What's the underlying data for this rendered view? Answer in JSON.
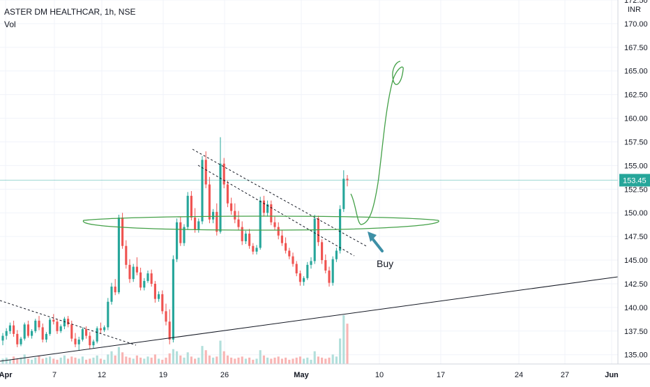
{
  "chart_data": {
    "type": "candlestick",
    "symbol_line": "ASTER DM HEALTHCAR, 1h, NSE",
    "volume_label": "Vol",
    "currency": "INR",
    "ylim": [
      134.5,
      172.5
    ],
    "y_ticks": [
      {
        "label": "135.00",
        "value": 135
      },
      {
        "label": "137.50",
        "value": 137.5
      },
      {
        "label": "140.00",
        "value": 140
      },
      {
        "label": "142.50",
        "value": 142.5
      },
      {
        "label": "145.00",
        "value": 145
      },
      {
        "label": "147.50",
        "value": 147.5
      },
      {
        "label": "150.00",
        "value": 150
      },
      {
        "label": "152.50",
        "value": 152.5
      },
      {
        "label": "155.00",
        "value": 155
      },
      {
        "label": "157.50",
        "value": 157.5
      },
      {
        "label": "160.00",
        "value": 160
      },
      {
        "label": "162.50",
        "value": 162.5
      },
      {
        "label": "165.00",
        "value": 165
      },
      {
        "label": "167.50",
        "value": 167.5
      },
      {
        "label": "170.00",
        "value": 170
      },
      {
        "label": "172.50",
        "value": 172.5
      }
    ],
    "x_ticks": [
      {
        "label": "Apr",
        "bold": true
      },
      {
        "label": "7",
        "bold": false
      },
      {
        "label": "12",
        "bold": false
      },
      {
        "label": "19",
        "bold": false
      },
      {
        "label": "26",
        "bold": false
      },
      {
        "label": "May",
        "bold": true
      },
      {
        "label": "10",
        "bold": false
      },
      {
        "label": "17",
        "bold": false
      },
      {
        "label": "24",
        "bold": false
      },
      {
        "label": "27",
        "bold": false
      },
      {
        "label": "Jun",
        "bold": true
      }
    ],
    "last_price": {
      "value": 153.45,
      "label": "153.45"
    },
    "candles": [
      [
        136.5,
        137.3,
        136.0,
        137.0
      ],
      [
        137.0,
        137.8,
        136.6,
        137.5
      ],
      [
        137.5,
        138.4,
        137.2,
        138.1
      ],
      [
        138.1,
        138.6,
        136.9,
        137.2
      ],
      [
        137.2,
        137.6,
        135.8,
        136.1
      ],
      [
        136.1,
        136.9,
        135.9,
        136.7
      ],
      [
        136.7,
        138.4,
        136.5,
        138.2
      ],
      [
        138.2,
        138.6,
        136.8,
        137.0
      ],
      [
        137.0,
        137.7,
        136.7,
        137.5
      ],
      [
        137.5,
        138.8,
        137.3,
        138.6
      ],
      [
        138.6,
        139.1,
        137.6,
        137.9
      ],
      [
        137.9,
        138.3,
        136.3,
        136.6
      ],
      [
        136.6,
        137.4,
        136.3,
        137.2
      ],
      [
        137.2,
        138.9,
        137.0,
        138.7
      ],
      [
        138.7,
        139.3,
        138.2,
        138.5
      ],
      [
        138.5,
        138.8,
        137.2,
        137.5
      ],
      [
        137.5,
        138.2,
        137.3,
        138.0
      ],
      [
        138.0,
        139.0,
        137.7,
        138.8
      ],
      [
        138.8,
        139.1,
        137.9,
        138.2
      ],
      [
        138.2,
        138.6,
        136.4,
        136.7
      ],
      [
        136.7,
        137.3,
        135.8,
        136.1
      ],
      [
        136.1,
        136.9,
        135.5,
        136.6
      ],
      [
        136.6,
        137.9,
        136.4,
        137.7
      ],
      [
        137.7,
        138.0,
        136.7,
        137.0
      ],
      [
        137.0,
        137.4,
        135.6,
        136.0
      ],
      [
        136.0,
        136.6,
        135.7,
        136.4
      ],
      [
        136.4,
        138.0,
        136.2,
        137.8
      ],
      [
        137.8,
        138.4,
        137.2,
        137.6
      ],
      [
        137.6,
        138.1,
        137.4,
        137.9
      ],
      [
        137.9,
        141.0,
        137.6,
        140.6
      ],
      [
        140.6,
        142.6,
        140.3,
        142.2
      ],
      [
        142.2,
        143.0,
        141.3,
        141.6
      ],
      [
        141.6,
        149.8,
        141.4,
        149.5
      ],
      [
        149.5,
        150.0,
        146.2,
        146.5
      ],
      [
        146.5,
        147.1,
        144.1,
        144.5
      ],
      [
        144.5,
        145.1,
        142.6,
        143.0
      ],
      [
        143.0,
        144.6,
        142.7,
        144.3
      ],
      [
        144.3,
        145.3,
        143.4,
        143.7
      ],
      [
        143.7,
        144.2,
        141.8,
        142.1
      ],
      [
        142.1,
        143.1,
        141.8,
        142.8
      ],
      [
        142.8,
        143.9,
        142.6,
        143.6
      ],
      [
        143.6,
        144.0,
        142.2,
        142.5
      ],
      [
        142.5,
        142.8,
        140.5,
        140.9
      ],
      [
        140.9,
        141.7,
        140.6,
        141.4
      ],
      [
        141.4,
        141.8,
        139.3,
        139.6
      ],
      [
        139.6,
        140.4,
        138.1,
        138.5
      ],
      [
        138.5,
        139.8,
        136.1,
        136.6
      ],
      [
        136.6,
        145.5,
        136.3,
        145.1
      ],
      [
        145.1,
        149.4,
        144.8,
        149.0
      ],
      [
        149.0,
        149.6,
        146.5,
        146.8
      ],
      [
        146.8,
        148.8,
        146.5,
        148.5
      ],
      [
        148.5,
        152.2,
        148.2,
        151.8
      ],
      [
        151.8,
        152.3,
        149.2,
        149.5
      ],
      [
        149.5,
        150.5,
        147.9,
        148.2
      ],
      [
        148.2,
        149.4,
        147.9,
        149.1
      ],
      [
        149.1,
        156.0,
        148.8,
        155.6
      ],
      [
        155.6,
        156.5,
        152.6,
        153.0
      ],
      [
        153.0,
        153.8,
        148.9,
        149.3
      ],
      [
        149.3,
        150.4,
        148.9,
        150.1
      ],
      [
        150.1,
        151.0,
        147.6,
        148.0
      ],
      [
        148.0,
        158.0,
        147.8,
        155.2
      ],
      [
        155.2,
        155.8,
        152.6,
        153.0
      ],
      [
        153.0,
        153.4,
        150.6,
        151.0
      ],
      [
        151.0,
        151.6,
        149.8,
        150.2
      ],
      [
        150.2,
        151.0,
        148.9,
        149.3
      ],
      [
        149.3,
        150.2,
        148.2,
        148.5
      ],
      [
        148.5,
        149.1,
        146.6,
        147.0
      ],
      [
        147.0,
        148.1,
        146.7,
        147.8
      ],
      [
        147.8,
        148.3,
        146.2,
        146.5
      ],
      [
        146.5,
        146.8,
        145.6,
        145.9
      ],
      [
        145.9,
        146.6,
        145.6,
        146.3
      ],
      [
        146.3,
        151.7,
        146.1,
        151.3
      ],
      [
        151.3,
        151.8,
        149.6,
        150.0
      ],
      [
        150.0,
        151.3,
        149.6,
        150.9
      ],
      [
        150.9,
        151.3,
        148.7,
        149.0
      ],
      [
        149.0,
        149.6,
        148.2,
        148.5
      ],
      [
        148.5,
        149.0,
        147.2,
        147.6
      ],
      [
        147.6,
        148.2,
        146.5,
        146.8
      ],
      [
        146.8,
        147.4,
        145.7,
        146.0
      ],
      [
        146.0,
        146.3,
        145.1,
        145.4
      ],
      [
        145.4,
        145.8,
        144.3,
        144.6
      ],
      [
        144.6,
        144.9,
        143.3,
        143.6
      ],
      [
        143.6,
        143.9,
        142.3,
        142.7
      ],
      [
        142.7,
        143.3,
        142.3,
        143.1
      ],
      [
        143.1,
        144.8,
        142.9,
        144.5
      ],
      [
        144.5,
        145.3,
        144.1,
        144.9
      ],
      [
        144.9,
        149.8,
        144.6,
        149.4
      ],
      [
        149.4,
        149.7,
        146.5,
        146.9
      ],
      [
        146.9,
        147.2,
        144.6,
        145.0
      ],
      [
        145.0,
        145.6,
        143.6,
        143.9
      ],
      [
        143.9,
        144.3,
        142.2,
        142.6
      ],
      [
        142.6,
        145.4,
        142.3,
        145.1
      ],
      [
        145.1,
        146.3,
        144.8,
        146.0
      ],
      [
        146.0,
        150.8,
        145.7,
        150.4
      ],
      [
        150.4,
        154.5,
        150.1,
        153.6
      ],
      [
        153.6,
        154.0,
        152.8,
        153.45
      ]
    ],
    "volumes": [
      5,
      6,
      4,
      7,
      5,
      6,
      9,
      5,
      4,
      6,
      8,
      5,
      6,
      7,
      5,
      4,
      6,
      8,
      5,
      7,
      6,
      5,
      7,
      4,
      5,
      6,
      8,
      5,
      4,
      9,
      12,
      8,
      16,
      11,
      7,
      6,
      5,
      8,
      6,
      5,
      7,
      6,
      9,
      5,
      4,
      6,
      10,
      14,
      12,
      8,
      6,
      11,
      7,
      5,
      6,
      17,
      13,
      8,
      6,
      7,
      22,
      12,
      8,
      6,
      5,
      6,
      7,
      5,
      6,
      4,
      5,
      13,
      8,
      6,
      5,
      6,
      7,
      5,
      6,
      4,
      5,
      6,
      7,
      5,
      6,
      4,
      12,
      7,
      6,
      5,
      6,
      9,
      7,
      24,
      46,
      38
    ]
  }
}
